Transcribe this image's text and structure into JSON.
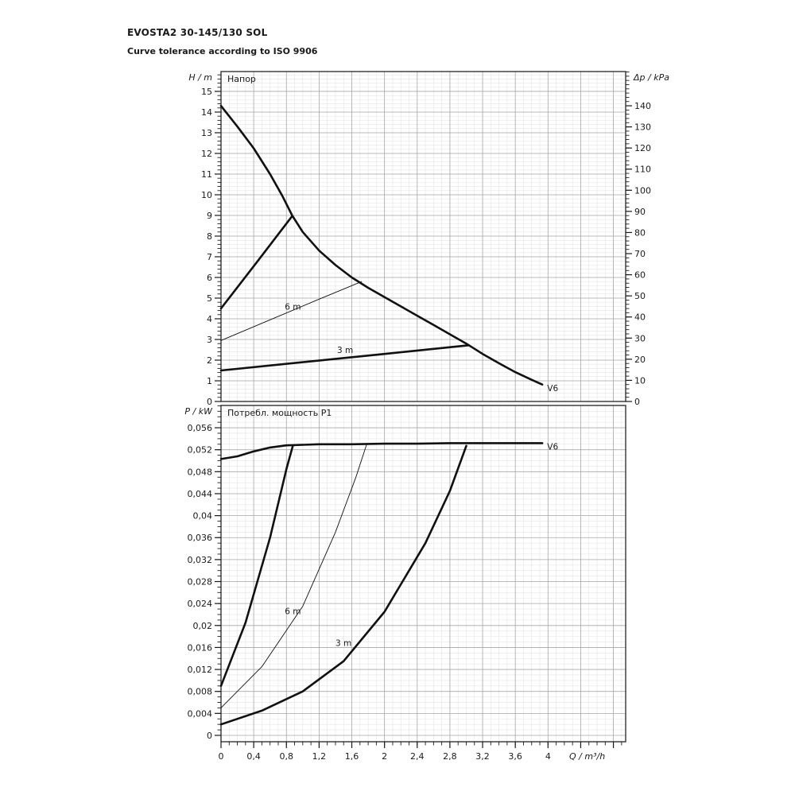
{
  "page": {
    "title": "EVOSTA2 30-145/130 SOL",
    "subtitle": "Curve tolerance according to ISO 9906"
  },
  "colors": {
    "ink": "#1a1a1a",
    "grid_minor": "#e4e4e4",
    "grid_major": "#a9a9a9",
    "border": "#333333",
    "curve": "#111111"
  },
  "chart_data": [
    {
      "id": "head-chart",
      "type": "line",
      "title": "Напор",
      "xlim": [
        0,
        4.95
      ],
      "ylim": [
        0,
        15.96
      ],
      "x_axis": {
        "label": "Q / m³/h",
        "ticks": [
          0,
          0.4,
          0.8,
          1.2,
          1.6,
          2,
          2.4,
          2.8,
          3.2,
          3.6,
          4
        ],
        "labels": [
          "0",
          "0,4",
          "0,8",
          "1,2",
          "1,6",
          "2",
          "2,4",
          "2,8",
          "3,2",
          "3,6",
          "4"
        ],
        "minor_step": 0.1,
        "major_step": 0.4,
        "show_labels": false
      },
      "y_left": {
        "label": "H / m",
        "ticks": [
          0,
          1,
          2,
          3,
          4,
          5,
          6,
          7,
          8,
          9,
          10,
          11,
          12,
          13,
          14,
          15
        ],
        "labels": [
          "0",
          "1",
          "2",
          "3",
          "4",
          "5",
          "6",
          "7",
          "8",
          "9",
          "10",
          "11",
          "12",
          "13",
          "14",
          "15"
        ],
        "minor_step": 0.2
      },
      "y_right": {
        "label": "Δp / kPa",
        "lim": [
          0,
          156.2
        ],
        "ticks": [
          0,
          10,
          20,
          30,
          40,
          50,
          60,
          70,
          80,
          90,
          100,
          110,
          120,
          130,
          140
        ],
        "labels": [
          "0",
          "10",
          "20",
          "30",
          "40",
          "50",
          "60",
          "70",
          "80",
          "90",
          "100",
          "110",
          "120",
          "130",
          "140"
        ],
        "minor_step": 2
      },
      "series": [
        {
          "id": "v6-max-head-curve",
          "label": "V6",
          "thin": false,
          "points": [
            [
              0,
              14.3
            ],
            [
              0.2,
              13.3
            ],
            [
              0.4,
              12.25
            ],
            [
              0.6,
              11.0
            ],
            [
              0.75,
              9.95
            ],
            [
              0.87,
              9.0
            ],
            [
              1.0,
              8.2
            ],
            [
              1.2,
              7.3
            ],
            [
              1.4,
              6.6
            ],
            [
              1.6,
              6.0
            ],
            [
              1.8,
              5.5
            ],
            [
              2.0,
              5.05
            ],
            [
              2.2,
              4.6
            ],
            [
              2.4,
              4.15
            ],
            [
              2.6,
              3.7
            ],
            [
              2.8,
              3.25
            ],
            [
              3.0,
              2.8
            ],
            [
              3.2,
              2.3
            ],
            [
              3.4,
              1.85
            ],
            [
              3.6,
              1.42
            ],
            [
              3.8,
              1.05
            ],
            [
              3.93,
              0.82
            ]
          ]
        },
        {
          "id": "proportional-9m-head-curve",
          "label": "",
          "thin": false,
          "points": [
            [
              0,
              4.5
            ],
            [
              0.45,
              6.8
            ],
            [
              0.87,
              8.97
            ]
          ]
        },
        {
          "id": "proportional-6m-head-curve",
          "label": "6 m",
          "thin": true,
          "points": [
            [
              0,
              2.95
            ],
            [
              0.6,
              3.95
            ],
            [
              1.2,
              4.95
            ],
            [
              1.72,
              5.8
            ]
          ]
        },
        {
          "id": "proportional-3m-head-curve",
          "label": "3 m",
          "thin": false,
          "points": [
            [
              0,
              1.5
            ],
            [
              1.0,
              1.9
            ],
            [
              2.0,
              2.3
            ],
            [
              3.03,
              2.72
            ]
          ]
        }
      ],
      "annotations": [
        {
          "text": "6 m",
          "x": 0.78,
          "y": 4.45
        },
        {
          "text": "3 m",
          "x": 1.42,
          "y": 2.35
        },
        {
          "text": "V6",
          "x": 3.99,
          "y": 0.5
        }
      ]
    },
    {
      "id": "power-chart",
      "type": "line",
      "title": "Потребл. мощность P1",
      "xlim": [
        0,
        4.95
      ],
      "ylim": [
        -0.00116,
        0.06006
      ],
      "x_axis": {
        "label": "Q / m³/h",
        "ticks": [
          0,
          0.4,
          0.8,
          1.2,
          1.6,
          2,
          2.4,
          2.8,
          3.2,
          3.6,
          4
        ],
        "labels": [
          "0",
          "0,4",
          "0,8",
          "1,2",
          "1,6",
          "2",
          "2,4",
          "2,8",
          "3,2",
          "3,6",
          "4"
        ],
        "minor_step": 0.1,
        "major_step": 0.4,
        "show_labels": true
      },
      "y_left": {
        "label": "P / kW",
        "ticks": [
          0,
          0.004,
          0.008,
          0.012,
          0.016,
          0.02,
          0.024,
          0.028,
          0.032,
          0.036,
          0.04,
          0.044,
          0.048,
          0.052,
          0.056
        ],
        "labels": [
          "0",
          "0,004",
          "0,008",
          "0,012",
          "0,016",
          "0,02",
          "0,024",
          "0,028",
          "0,032",
          "0,036",
          "0,04",
          "0,044",
          "0,048",
          "0,052",
          "0,056"
        ],
        "minor_step": 0.001
      },
      "series": [
        {
          "id": "v6-max-power-curve",
          "label": "V6",
          "thin": false,
          "points": [
            [
              0,
              0.0503
            ],
            [
              0.2,
              0.0508
            ],
            [
              0.4,
              0.0517
            ],
            [
              0.6,
              0.0524
            ],
            [
              0.8,
              0.0528
            ],
            [
              1.2,
              0.053
            ],
            [
              1.6,
              0.053
            ],
            [
              2.0,
              0.0531
            ],
            [
              2.4,
              0.0531
            ],
            [
              2.8,
              0.0532
            ],
            [
              3.2,
              0.0532
            ],
            [
              3.6,
              0.0532
            ],
            [
              3.93,
              0.0532
            ]
          ]
        },
        {
          "id": "power-curve-9m",
          "label": "",
          "thin": false,
          "points": [
            [
              0,
              0.009
            ],
            [
              0.3,
              0.0205
            ],
            [
              0.6,
              0.036
            ],
            [
              0.8,
              0.0485
            ],
            [
              0.88,
              0.0528
            ]
          ]
        },
        {
          "id": "power-curve-6m",
          "label": "6 m",
          "thin": true,
          "points": [
            [
              0,
              0.005
            ],
            [
              0.5,
              0.0125
            ],
            [
              1.0,
              0.0235
            ],
            [
              1.4,
              0.037
            ],
            [
              1.65,
              0.047
            ],
            [
              1.78,
              0.0529
            ]
          ]
        },
        {
          "id": "power-curve-3m",
          "label": "3 m",
          "thin": false,
          "points": [
            [
              0,
              0.002
            ],
            [
              0.5,
              0.0045
            ],
            [
              1.0,
              0.008
            ],
            [
              1.5,
              0.0135
            ],
            [
              2.0,
              0.0225
            ],
            [
              2.5,
              0.035
            ],
            [
              2.8,
              0.0445
            ],
            [
              3.0,
              0.0527
            ]
          ]
        }
      ],
      "annotations": [
        {
          "text": "6 m",
          "x": 0.78,
          "y": 0.0221
        },
        {
          "text": "3 m",
          "x": 1.4,
          "y": 0.0163
        },
        {
          "text": "V6",
          "x": 3.99,
          "y": 0.052
        }
      ]
    }
  ]
}
